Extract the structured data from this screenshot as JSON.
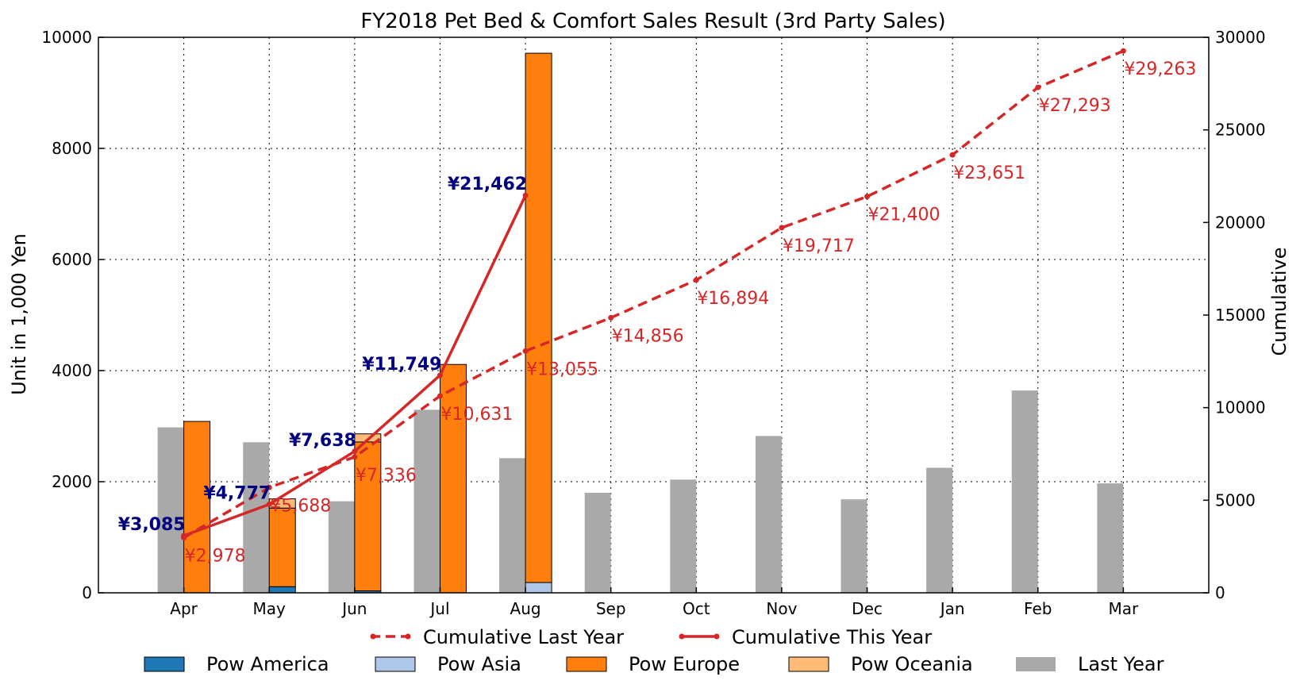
{
  "chart_data": {
    "type": "bar",
    "title": "FY2018 Pet Bed & Comfort Sales Result (3rd Party Sales)",
    "ylabel": "Unit in 1,000 Yen",
    "y2label": "Cumulative",
    "ylim": [
      0,
      10000
    ],
    "y2lim": [
      0,
      30000
    ],
    "yticks": [
      "0",
      "2000",
      "4000",
      "6000",
      "8000",
      "10000"
    ],
    "y2ticks": [
      "0",
      "5000",
      "10000",
      "15000",
      "20000",
      "25000",
      "30000"
    ],
    "grid": true,
    "legend_position": "bottom",
    "categories": [
      "Apr",
      "May",
      "Jun",
      "Jul",
      "Aug",
      "Sep",
      "Oct",
      "Nov",
      "Dec",
      "Jan",
      "Feb",
      "Mar"
    ],
    "last_year": {
      "name": "Last Year",
      "color": "#a9a9a9",
      "values": [
        2978,
        2710,
        1648,
        3295,
        2424,
        1801,
        2038,
        2823,
        1683,
        2251,
        3642,
        1970
      ]
    },
    "stacked_series": [
      {
        "name": "Pow America",
        "color": "#1f77b4",
        "values": [
          0,
          110,
          35,
          0,
          0,
          0,
          0,
          0,
          0,
          0,
          0,
          0
        ]
      },
      {
        "name": "Pow Asia",
        "color": "#aec7e8",
        "values": [
          0,
          0,
          0,
          0,
          185,
          0,
          0,
          0,
          0,
          0,
          0,
          0
        ]
      },
      {
        "name": "Pow Europe",
        "color": "#ff7f0e",
        "values": [
          3085,
          1415,
          2680,
          4111,
          9528,
          0,
          0,
          0,
          0,
          0,
          0,
          0
        ]
      },
      {
        "name": "Pow Oceania",
        "color": "#ffbb78",
        "values": [
          0,
          167,
          146,
          0,
          0,
          0,
          0,
          0,
          0,
          0,
          0,
          0
        ]
      }
    ],
    "line_series": [
      {
        "name": "Cumulative Last Year",
        "color": "#d62728",
        "style": "dashed",
        "values": [
          2978,
          5688,
          7336,
          10631,
          13055,
          14856,
          16894,
          19717,
          21400,
          23651,
          27293,
          29263
        ],
        "labels": [
          "¥2,978",
          "¥5,688",
          "¥7,336",
          "¥10,631",
          "¥13,055",
          "¥14,856",
          "¥16,894",
          "¥19,717",
          "¥21,400",
          "¥23,651",
          "¥27,293",
          "¥29,263"
        ]
      },
      {
        "name": "Cumulative This Year",
        "color": "#d62728",
        "style": "solid",
        "values": [
          3085,
          4777,
          7638,
          11749,
          21462
        ],
        "labels": [
          "¥3,085",
          "¥4,777",
          "¥7,638",
          "¥11,749",
          "¥21,462"
        ],
        "label_color": "#000080"
      }
    ],
    "legend_row1": [
      "Cumulative Last Year",
      "Cumulative This Year"
    ],
    "legend_row2": [
      "Pow America",
      "Pow Asia",
      "Pow Europe",
      "Pow Oceania",
      "Last Year"
    ]
  }
}
